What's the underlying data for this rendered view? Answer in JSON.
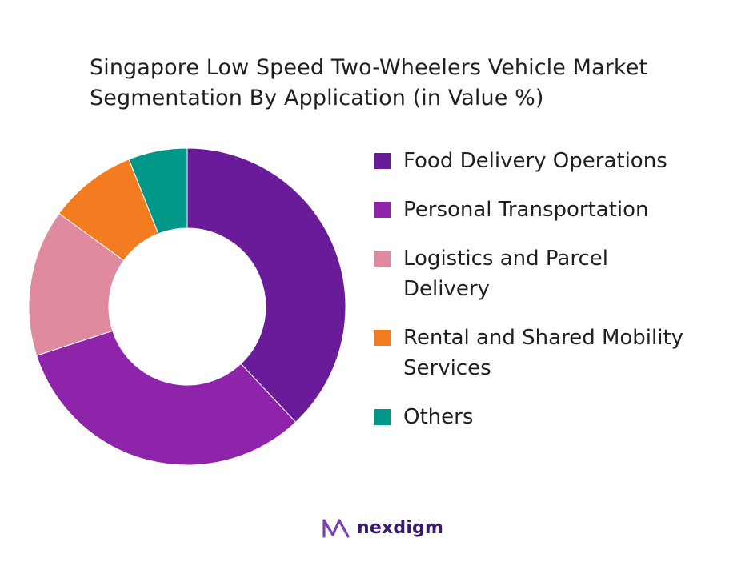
{
  "chart_data": {
    "type": "pie",
    "variant": "donut",
    "title_lines": [
      "Singapore Low Speed Two-Wheelers Vehicle Market",
      "Segmentation By Application (in Value %)"
    ],
    "categories": [
      "Food Delivery Operations",
      "Personal Transportation",
      "Logistics and Parcel Delivery",
      "Rental and Shared Mobility Services",
      "Others"
    ],
    "legend_lines": [
      [
        "Food Delivery Operations"
      ],
      [
        "Personal Transportation"
      ],
      [
        "Logistics and Parcel",
        "Delivery"
      ],
      [
        "Rental and Shared Mobility",
        "Services"
      ],
      [
        "Others"
      ]
    ],
    "values": [
      38,
      32,
      15,
      9,
      6
    ],
    "colors": [
      "#6a1b9a",
      "#8e24aa",
      "#e08aa0",
      "#f47c20",
      "#009688"
    ],
    "legend_position": "right"
  },
  "brand": {
    "name": "nexdigm"
  }
}
